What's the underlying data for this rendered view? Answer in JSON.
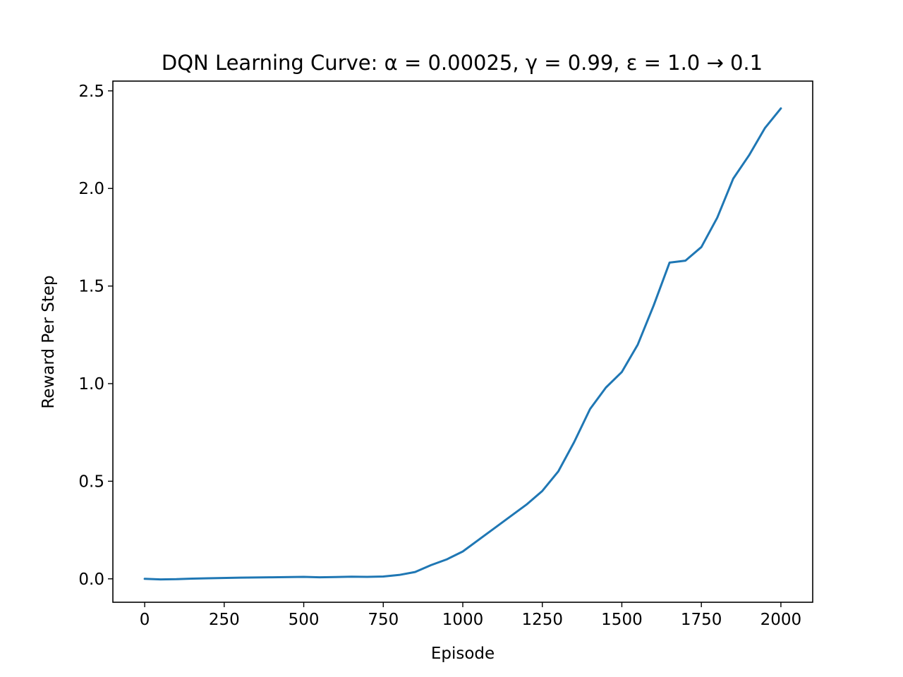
{
  "chart_data": {
    "type": "line",
    "title": "DQN Learning Curve: α = 0.00025, γ = 0.99, ε = 1.0 → 0.1",
    "xlabel": "Episode",
    "ylabel": "Reward Per Step",
    "xlim": [
      -100,
      2100
    ],
    "ylim": [
      -0.12,
      2.55
    ],
    "xticks": [
      0,
      250,
      500,
      750,
      1000,
      1250,
      1500,
      1750,
      2000
    ],
    "xtick_labels": [
      "0",
      "250",
      "500",
      "750",
      "1000",
      "1250",
      "1500",
      "1750",
      "2000"
    ],
    "yticks": [
      0.0,
      0.5,
      1.0,
      1.5,
      2.0,
      2.5
    ],
    "ytick_labels": [
      "0.0",
      "0.5",
      "1.0",
      "1.5",
      "2.0",
      "2.5"
    ],
    "grid": false,
    "line_color": "#1f77b4",
    "series": [
      {
        "x": [
          0,
          50,
          100,
          150,
          200,
          300,
          400,
          500,
          550,
          600,
          650,
          700,
          750,
          800,
          850,
          900,
          950,
          1000,
          1050,
          1100,
          1150,
          1200,
          1250,
          1300,
          1350,
          1400,
          1450,
          1500,
          1550,
          1600,
          1650,
          1700,
          1750,
          1800,
          1850,
          1900,
          1950,
          2000
        ],
        "y": [
          0.0,
          -0.003,
          -0.002,
          0.001,
          0.003,
          0.006,
          0.008,
          0.01,
          0.008,
          0.009,
          0.011,
          0.01,
          0.012,
          0.02,
          0.035,
          0.07,
          0.1,
          0.14,
          0.2,
          0.26,
          0.32,
          0.38,
          0.45,
          0.55,
          0.7,
          0.87,
          0.98,
          1.06,
          1.2,
          1.4,
          1.62,
          1.63,
          1.7,
          1.85,
          2.05,
          2.17,
          2.31,
          2.41
        ]
      }
    ]
  }
}
